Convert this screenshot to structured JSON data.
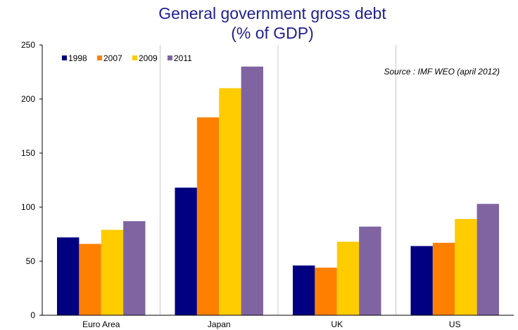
{
  "chart_data": {
    "type": "bar",
    "title_line1": "General government gross debt",
    "title_line2": "(% of GDP)",
    "annotation": "Source : IMF WEO (april 2012)",
    "xlabel": "",
    "ylabel": "",
    "ylim": [
      0,
      250
    ],
    "yticks": [
      "0",
      "50",
      "100",
      "150",
      "200",
      "250"
    ],
    "grid": "vertical separators between categories",
    "legend_placement": "top-left",
    "categories": [
      "Euro Area",
      "Japan",
      "UK",
      "US"
    ],
    "series": [
      {
        "name": "1998",
        "color": "#000080",
        "values": [
          72,
          118,
          46,
          64
        ]
      },
      {
        "name": "2007",
        "color": "#ff8000",
        "values": [
          66,
          183,
          44,
          67
        ]
      },
      {
        "name": "2009",
        "color": "#ffcc00",
        "values": [
          79,
          210,
          68,
          89
        ]
      },
      {
        "name": "2011",
        "color": "#8064a2",
        "values": [
          87,
          230,
          82,
          103
        ]
      }
    ]
  }
}
